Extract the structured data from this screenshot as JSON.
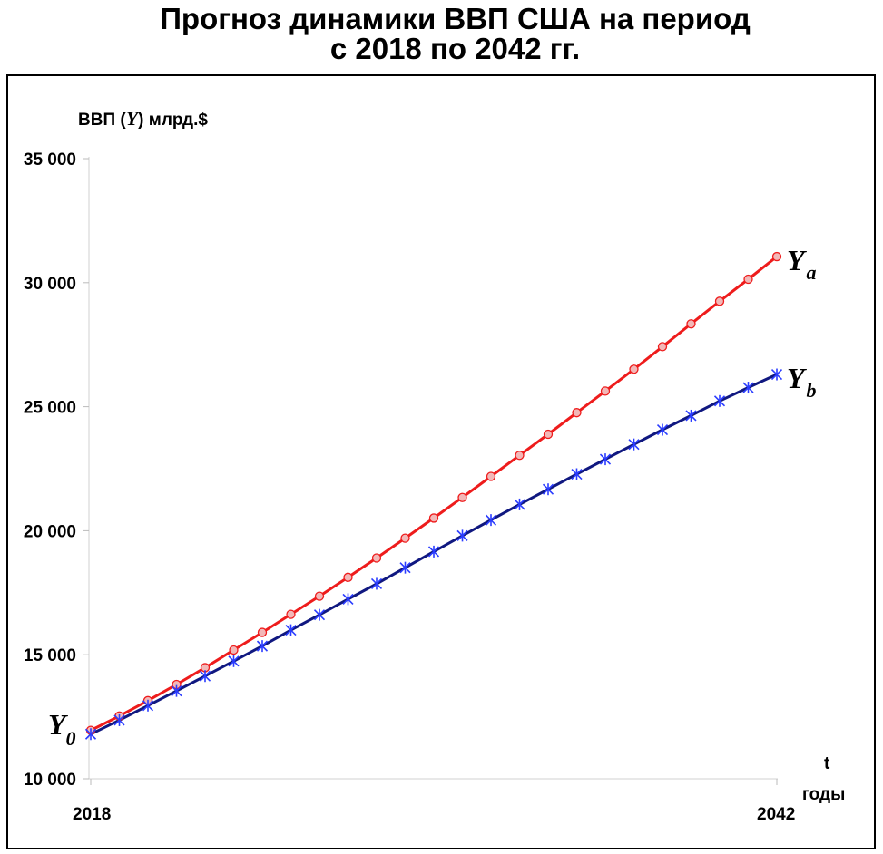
{
  "chart_data": {
    "type": "line",
    "title_line1": "Прогноз динамики ВВП США на период",
    "title_line2": "с 2018 по 2042 гг.",
    "ylabel_prefix": "ВВП (",
    "ylabel_var": "Y",
    "ylabel_suffix": ") млрд.$",
    "xlabel_line1": "t",
    "xlabel_line2": "годы",
    "ylim": [
      10000,
      35000
    ],
    "yticks": [
      10000,
      15000,
      20000,
      25000,
      30000,
      35000
    ],
    "ytick_labels": [
      "10 000",
      "15 000",
      "20 000",
      "25 000",
      "30 000",
      "35 000"
    ],
    "xlim": [
      2018,
      2042
    ],
    "xtick_labels": [
      "2018",
      "2042"
    ],
    "x": [
      2018,
      2019,
      2020,
      2021,
      2022,
      2023,
      2024,
      2025,
      2026,
      2027,
      2028,
      2029,
      2030,
      2031,
      2032,
      2033,
      2034,
      2035,
      2036,
      2037,
      2038,
      2039,
      2040,
      2041,
      2042
    ],
    "initial_label": "Y",
    "initial_label_sub": "0",
    "grid": false,
    "series": [
      {
        "name": "Y",
        "name_sub": "a",
        "color": "#ee1c1c",
        "marker": "circle",
        "values": [
          11950,
          12530,
          13150,
          13800,
          14480,
          15190,
          15900,
          16630,
          17360,
          18120,
          18900,
          19700,
          20510,
          21340,
          22190,
          23040,
          23890,
          24760,
          25630,
          26510,
          27420,
          28340,
          29250,
          30140,
          31050
        ]
      },
      {
        "name": "Y",
        "name_sub": "b",
        "color": "#101880",
        "marker": "star",
        "values": [
          11800,
          12360,
          12950,
          13540,
          14140,
          14740,
          15350,
          15990,
          16610,
          17240,
          17860,
          18510,
          19160,
          19800,
          20430,
          21060,
          21670,
          22280,
          22880,
          23480,
          24070,
          24640,
          25230,
          25770,
          26300
        ]
      }
    ]
  }
}
